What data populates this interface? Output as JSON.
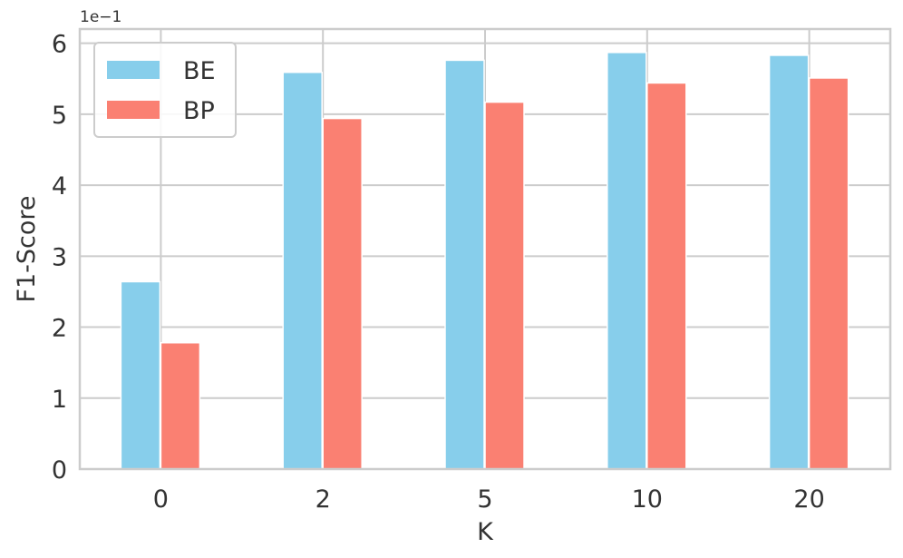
{
  "chart_data": {
    "type": "bar",
    "categories": [
      "0",
      "2",
      "5",
      "10",
      "20"
    ],
    "series": [
      {
        "name": "BE",
        "color": "#87CEEB",
        "values": [
          2.64,
          5.59,
          5.76,
          5.87,
          5.83
        ]
      },
      {
        "name": "BP",
        "color": "#FA8072",
        "values": [
          1.78,
          4.94,
          5.17,
          5.44,
          5.51
        ]
      }
    ],
    "xlabel": "K",
    "ylabel": "F1-Score",
    "ylim": [
      0,
      6.2
    ],
    "yticks": [
      0,
      1,
      2,
      3,
      4,
      5,
      6
    ],
    "y_offset_label": "1e−1",
    "grid": true,
    "legend_position": "top-left"
  }
}
